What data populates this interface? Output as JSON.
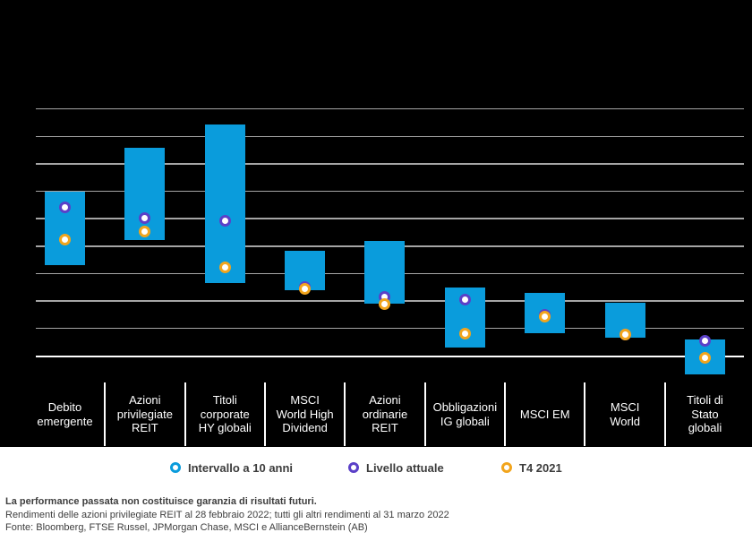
{
  "chart_data": {
    "type": "range-bar",
    "description": "Floating bars show 10-year yield range per asset class; ring markers show current level and Q4 2021 level. No numeric axis labels are visible; values are in gridline units (bottom axis = 0, 1 unit per gridline).",
    "yaxis": {
      "gridline_values": [
        0,
        1,
        2,
        3,
        4,
        5,
        6,
        7,
        8,
        9
      ],
      "tick_labels_visible": false,
      "grid_on": true
    },
    "categories": [
      {
        "label": "Debito emergente",
        "lines": [
          "Debito",
          "emergente"
        ]
      },
      {
        "label": "Azioni privilegiate REIT",
        "lines": [
          "Azioni",
          "privilegiate",
          "REIT"
        ]
      },
      {
        "label": "Titoli corporate HY globali",
        "lines": [
          "Titoli",
          "corporate",
          "HY globali"
        ]
      },
      {
        "label": "MSCI World High Dividend",
        "lines": [
          "MSCI",
          "World High",
          "Dividend"
        ]
      },
      {
        "label": "Azioni ordinarie REIT",
        "lines": [
          "Azioni",
          "ordinarie",
          "REIT"
        ]
      },
      {
        "label": "Obbligazioni IG globali",
        "lines": [
          "Obbligazioni",
          "IG globali"
        ]
      },
      {
        "label": "MSCI EM",
        "lines": [
          "MSCI EM"
        ]
      },
      {
        "label": "MSCI World",
        "lines": [
          "MSCI",
          "World"
        ]
      },
      {
        "label": "Titoli di Stato globali",
        "lines": [
          "Titoli di",
          "Stato",
          "globali"
        ]
      }
    ],
    "series": [
      {
        "name": "Intervallo a 10 anni",
        "role": "range",
        "low": [
          3.33,
          4.22,
          2.66,
          2.39,
          1.9,
          0.32,
          0.84,
          0.66,
          -0.68
        ],
        "high": [
          6.0,
          7.6,
          8.45,
          3.85,
          4.2,
          2.5,
          2.3,
          1.93,
          0.59
        ]
      },
      {
        "name": "Livello attuale",
        "role": "marker",
        "values": [
          5.42,
          5.04,
          4.93,
          2.53,
          2.16,
          2.07,
          1.5,
          0.79,
          0.57
        ]
      },
      {
        "name": "T4 2021",
        "role": "marker",
        "values": [
          4.24,
          4.55,
          3.24,
          2.45,
          1.88,
          0.82,
          1.45,
          0.79,
          -0.08
        ]
      }
    ]
  },
  "legend": {
    "items": [
      {
        "label": "Intervallo a 10 anni",
        "color": "#0a9cdc"
      },
      {
        "label": "Livello attuale",
        "color": "#5b40c8"
      },
      {
        "label": "T4 2021",
        "color": "#f2a51d"
      }
    ]
  },
  "footnotes": {
    "bold_line": "La performance passata non costituisce garanzia di risultati futuri.",
    "line2": "Rendimenti delle azioni privilegiate REIT al 28 febbraio 2022; tutti gli altri rendimenti al 31 marzo 2022",
    "line3": "Fonte: Bloomberg, FTSE Russel, JPMorgan Chase, MSCI e AllianceBernstein (AB)"
  },
  "colors": {
    "panel_background": "#000000",
    "page_background": "#ffffff",
    "bar_blue": "#0a9cdc",
    "current_purple": "#5b40c8",
    "q4_yellow": "#f2a51d",
    "gridline_gray": "#a5a5a5",
    "axis_white": "#ffffff",
    "category_text": "#ffffff",
    "footer_text": "#3d3d3d"
  }
}
